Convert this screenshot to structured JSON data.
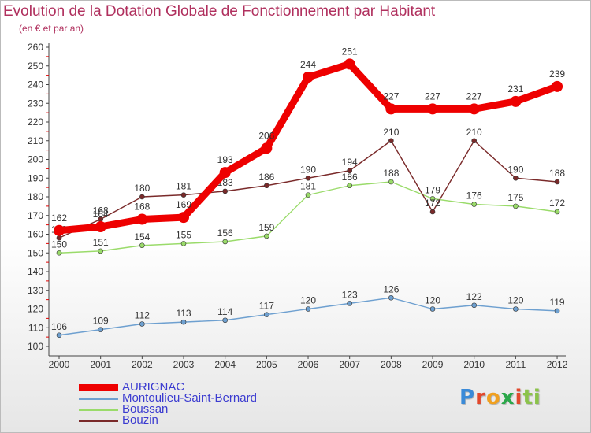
{
  "title": "Evolution de la Dotation Globale de Fonctionnement par Habitant",
  "subtitle": "(en € et par an)",
  "logo": "Proxiti",
  "chart_data": {
    "type": "line",
    "categories": [
      "2000",
      "2001",
      "2002",
      "2003",
      "2004",
      "2005",
      "2006",
      "2007",
      "2008",
      "2009",
      "2010",
      "2011",
      "2012"
    ],
    "ylim": [
      100,
      260
    ],
    "yticks": [
      100,
      110,
      120,
      130,
      140,
      150,
      160,
      170,
      180,
      190,
      200,
      210,
      220,
      230,
      240,
      250,
      260
    ],
    "grid": false,
    "legend_position": "bottom-left",
    "series": [
      {
        "name": "AURIGNAC",
        "color": "#ee0000",
        "values": [
          162,
          164,
          168,
          169,
          193,
          206,
          244,
          251,
          227,
          227,
          227,
          231,
          239
        ]
      },
      {
        "name": "Montoulieu-Saint-Bernard",
        "color": "#6ea0d0",
        "values": [
          106,
          109,
          112,
          113,
          114,
          117,
          120,
          123,
          126,
          120,
          122,
          120,
          119
        ]
      },
      {
        "name": "Boussan",
        "color": "#9adb6a",
        "values": [
          150,
          151,
          154,
          155,
          156,
          159,
          181,
          186,
          188,
          179,
          176,
          175,
          172
        ]
      },
      {
        "name": "Bouzin",
        "color": "#7a2a2a",
        "values": [
          158,
          168,
          180,
          181,
          183,
          186,
          190,
          194,
          210,
          172,
          210,
          190,
          188
        ]
      }
    ]
  }
}
